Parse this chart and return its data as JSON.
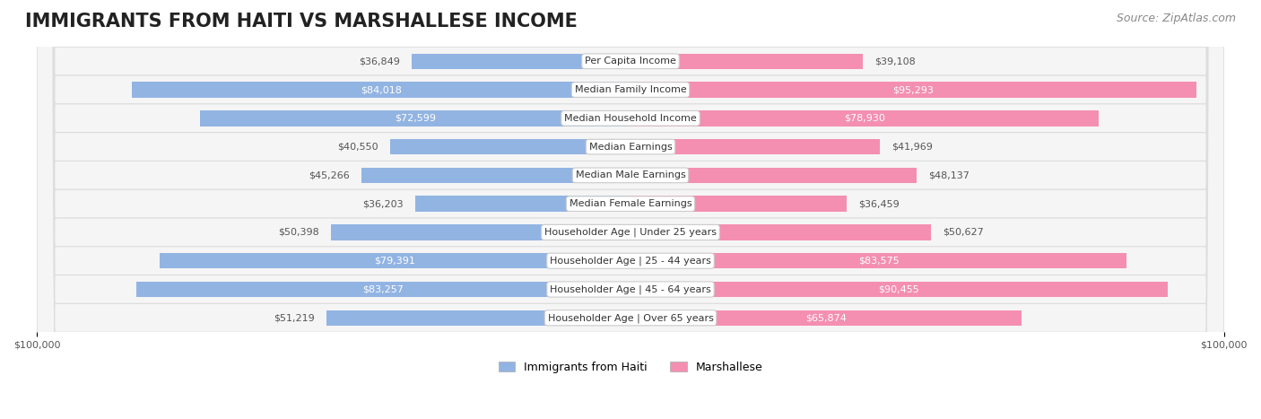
{
  "title": "IMMIGRANTS FROM HAITI VS MARSHALLESE INCOME",
  "source": "Source: ZipAtlas.com",
  "categories": [
    "Per Capita Income",
    "Median Family Income",
    "Median Household Income",
    "Median Earnings",
    "Median Male Earnings",
    "Median Female Earnings",
    "Householder Age | Under 25 years",
    "Householder Age | 25 - 44 years",
    "Householder Age | 45 - 64 years",
    "Householder Age | Over 65 years"
  ],
  "haiti_values": [
    36849,
    84018,
    72599,
    40550,
    45266,
    36203,
    50398,
    79391,
    83257,
    51219
  ],
  "marshallese_values": [
    39108,
    95293,
    78930,
    41969,
    48137,
    36459,
    50627,
    83575,
    90455,
    65874
  ],
  "haiti_labels": [
    "$36,849",
    "$84,018",
    "$72,599",
    "$40,550",
    "$45,266",
    "$36,203",
    "$50,398",
    "$79,391",
    "$83,257",
    "$51,219"
  ],
  "marshallese_labels": [
    "$39,108",
    "$95,293",
    "$78,930",
    "$41,969",
    "$48,137",
    "$36,459",
    "$50,627",
    "$83,575",
    "$90,455",
    "$65,874"
  ],
  "max_value": 100000,
  "haiti_color": "#92b4e3",
  "marshallese_color": "#f48fb1",
  "haiti_color_dark": "#6fa0d8",
  "marshallese_color_dark": "#f06292",
  "label_color_light": "#555555",
  "label_color_dark": "#ffffff",
  "background_color": "#ffffff",
  "row_bg_color": "#f5f5f5",
  "row_border_color": "#dddddd",
  "title_fontsize": 15,
  "source_fontsize": 9,
  "bar_label_fontsize": 8,
  "category_fontsize": 8,
  "axis_label_fontsize": 8,
  "legend_fontsize": 9
}
